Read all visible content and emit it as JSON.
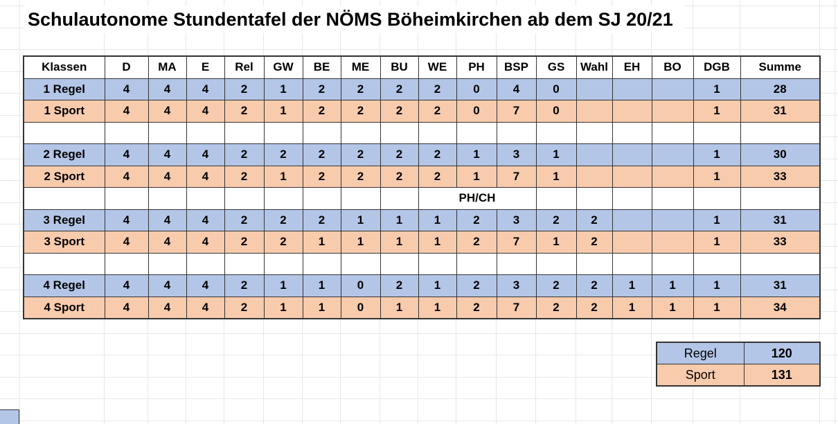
{
  "title": "Schulautonome Stundentafel der NÖMS Böheimkirchen ab dem SJ 20/21",
  "colors": {
    "regel_fill": "#b4c6e7",
    "sport_fill": "#f8cbad",
    "border": "#333333",
    "gridline": "#e4e7eb"
  },
  "table": {
    "columns": [
      "Klassen",
      "D",
      "MA",
      "E",
      "Rel",
      "GW",
      "BE",
      "ME",
      "BU",
      "WE",
      "PH",
      "BSP",
      "GS",
      "Wahl",
      "EH",
      "BO",
      "DGB",
      "Summe"
    ],
    "rows": [
      {
        "type": "regel",
        "cells": [
          "1 Regel",
          "4",
          "4",
          "4",
          "2",
          "1",
          "2",
          "2",
          "2",
          "2",
          "0",
          "4",
          "0",
          "",
          "",
          "",
          "1",
          "28"
        ]
      },
      {
        "type": "sport",
        "cells": [
          "1 Sport",
          "4",
          "4",
          "4",
          "2",
          "1",
          "2",
          "2",
          "2",
          "2",
          "0",
          "7",
          "0",
          "",
          "",
          "",
          "1",
          "31"
        ]
      },
      {
        "type": "separator"
      },
      {
        "type": "regel",
        "cells": [
          "2 Regel",
          "4",
          "4",
          "4",
          "2",
          "2",
          "2",
          "2",
          "2",
          "2",
          "1",
          "3",
          "1",
          "",
          "",
          "",
          "1",
          "30"
        ]
      },
      {
        "type": "sport",
        "cells": [
          "2 Sport",
          "4",
          "4",
          "4",
          "2",
          "1",
          "2",
          "2",
          "2",
          "2",
          "1",
          "7",
          "1",
          "",
          "",
          "",
          "1",
          "33"
        ]
      },
      {
        "type": "separator",
        "note": "PH/CH"
      },
      {
        "type": "regel",
        "cells": [
          "3 Regel",
          "4",
          "4",
          "4",
          "2",
          "2",
          "2",
          "1",
          "1",
          "1",
          "2",
          "3",
          "2",
          "2",
          "",
          "",
          "1",
          "31"
        ]
      },
      {
        "type": "sport",
        "cells": [
          "3 Sport",
          "4",
          "4",
          "4",
          "2",
          "2",
          "1",
          "1",
          "1",
          "1",
          "2",
          "7",
          "1",
          "2",
          "",
          "",
          "1",
          "33"
        ]
      },
      {
        "type": "separator"
      },
      {
        "type": "regel",
        "cells": [
          "4 Regel",
          "4",
          "4",
          "4",
          "2",
          "1",
          "1",
          "0",
          "2",
          "1",
          "2",
          "3",
          "2",
          "2",
          "1",
          "1",
          "1",
          "31"
        ]
      },
      {
        "type": "sport",
        "cells": [
          "4 Sport",
          "4",
          "4",
          "4",
          "2",
          "1",
          "1",
          "0",
          "1",
          "1",
          "2",
          "7",
          "2",
          "2",
          "1",
          "1",
          "1",
          "34"
        ]
      }
    ]
  },
  "summary": {
    "rows": [
      {
        "type": "regel",
        "label": "Regel",
        "value": "120"
      },
      {
        "type": "sport",
        "label": "Sport",
        "value": "131"
      }
    ]
  }
}
